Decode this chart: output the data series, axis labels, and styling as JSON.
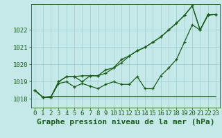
{
  "title": "Graphe pression niveau de la mer (hPa)",
  "background_color": "#c5e8e8",
  "grid_color": "#9fcfcf",
  "line_color": "#1a5c1a",
  "x_data": [
    0,
    1,
    2,
    3,
    4,
    5,
    6,
    7,
    8,
    9,
    10,
    11,
    12,
    13,
    14,
    15,
    16,
    17,
    18,
    19,
    20,
    21,
    22,
    23
  ],
  "series1": [
    1018.5,
    1018.1,
    1018.15,
    1018.15,
    1018.15,
    1018.15,
    1018.15,
    1018.15,
    1018.15,
    1018.15,
    1018.15,
    1018.15,
    1018.15,
    1018.15,
    1018.15,
    1018.15,
    1018.15,
    1018.15,
    1018.15,
    1018.15,
    1018.15,
    1018.15,
    1018.15,
    1018.15
  ],
  "series2": [
    1018.5,
    1018.1,
    1018.1,
    1018.9,
    1019.0,
    1018.7,
    1018.9,
    1018.75,
    1018.6,
    1018.85,
    1019.0,
    1018.85,
    1018.85,
    1019.3,
    1018.6,
    1018.6,
    1019.35,
    1019.8,
    1020.3,
    1021.3,
    1022.3,
    1022.0,
    1022.85,
    1022.9
  ],
  "series3": [
    1018.5,
    1018.1,
    1018.1,
    1019.0,
    1019.3,
    1019.3,
    1019.35,
    1019.35,
    1019.35,
    1019.7,
    1019.8,
    1020.3,
    1020.5,
    1020.8,
    1021.0,
    1021.3,
    1021.6,
    1022.0,
    1022.4,
    1022.85,
    1023.4,
    1022.0,
    1022.9,
    1022.9
  ],
  "series4": [
    1018.5,
    1018.1,
    1018.1,
    1019.0,
    1019.3,
    1019.3,
    1019.0,
    1019.35,
    1019.35,
    1019.5,
    1019.8,
    1020.1,
    1020.5,
    1020.8,
    1021.0,
    1021.3,
    1021.6,
    1022.0,
    1022.4,
    1022.85,
    1023.4,
    1022.0,
    1022.9,
    1022.9
  ],
  "ylim": [
    1017.5,
    1023.5
  ],
  "yticks": [
    1018,
    1019,
    1020,
    1021,
    1022
  ],
  "xlim": [
    -0.5,
    23.5
  ],
  "title_fontsize": 8,
  "tick_fontsize": 6.5
}
